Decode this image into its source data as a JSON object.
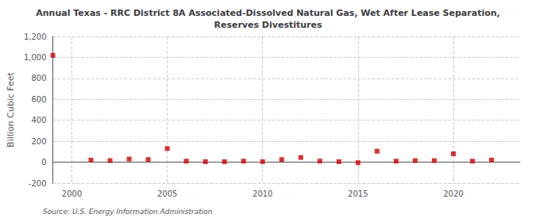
{
  "chart_data": {
    "type": "scatter",
    "title": "Annual Texas - RRC District 8A Associated-Dissolved Natural Gas, Wet After Lease Separation,\nReserves Divestitures",
    "ylabel": "Billion Cubic Feet",
    "annotation": "Source: U.S. Energy Information Administration",
    "x": [
      1999,
      2001,
      2002,
      2003,
      2004,
      2005,
      2006,
      2007,
      2008,
      2009,
      2010,
      2011,
      2012,
      2013,
      2014,
      2015,
      2016,
      2017,
      2018,
      2019,
      2020,
      2021,
      2022
    ],
    "values": [
      1020,
      20,
      15,
      30,
      25,
      130,
      10,
      5,
      5,
      10,
      5,
      25,
      45,
      10,
      5,
      -5,
      105,
      10,
      15,
      15,
      80,
      10,
      20
    ],
    "color": "#cc0000",
    "marker": "square",
    "xlim": [
      1999,
      2023.5
    ],
    "xticks": [
      2000,
      2005,
      2010,
      2015,
      2020
    ],
    "ylim": [
      -200,
      1200
    ],
    "yticks": [
      -200,
      0,
      200,
      400,
      {
        "value": 600,
        "label": "600"
      },
      800,
      {
        "value": 1000,
        "label": "1,000"
      },
      {
        "value": 1200,
        "label": "1,200"
      }
    ],
    "grid": true
  }
}
